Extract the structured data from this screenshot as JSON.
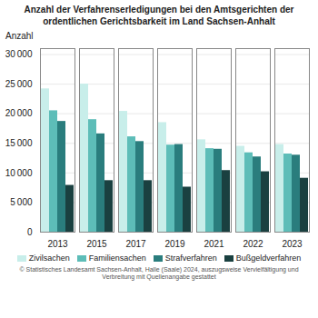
{
  "chart_data": {
    "type": "bar",
    "title": "Anzahl der Verfahrenserledigungen bei den Amtsgerichten der\nordentlichen Gerichtsbarkeit im Land Sachsen-Anhalt",
    "ylabel": "Anzahl",
    "footnote": "© Statistisches Landesamt Sachsen-Anhalt, Halle (Saale) 2024, auszugsweise Vervielfältigung und Verbreitung mit Quellenangabe gestattet",
    "categories": [
      "2013",
      "2015",
      "2017",
      "2019",
      "2021",
      "2022",
      "2023"
    ],
    "series": [
      {
        "name": "Zivilsachen",
        "color": "#c8eeea",
        "values": [
          24200,
          25000,
          20400,
          18500,
          15600,
          14500,
          14800
        ]
      },
      {
        "name": "Familiensachen",
        "color": "#5dbdb8",
        "values": [
          20500,
          19000,
          16100,
          14700,
          14100,
          13400,
          13200
        ]
      },
      {
        "name": "Strafverfahren",
        "color": "#2a7d7d",
        "values": [
          18700,
          16600,
          15300,
          14800,
          14000,
          12700,
          13000
        ]
      },
      {
        "name": "Bußgeldverfahren",
        "color": "#1a4040",
        "values": [
          7900,
          8700,
          8700,
          7600,
          10400,
          10200,
          9100
        ]
      }
    ],
    "ylim": [
      0,
      31000
    ],
    "yticks": [
      0,
      {
        "value": 5000,
        "label": "5 000"
      },
      {
        "value": 10000,
        "label": "10 000"
      },
      {
        "value": 15000,
        "label": "15 000"
      },
      {
        "value": 20000,
        "label": "20 000"
      },
      {
        "value": 25000,
        "label": "25 000"
      },
      {
        "value": 30000,
        "label": "30 000"
      }
    ],
    "grid": true,
    "legend": "bottom"
  }
}
